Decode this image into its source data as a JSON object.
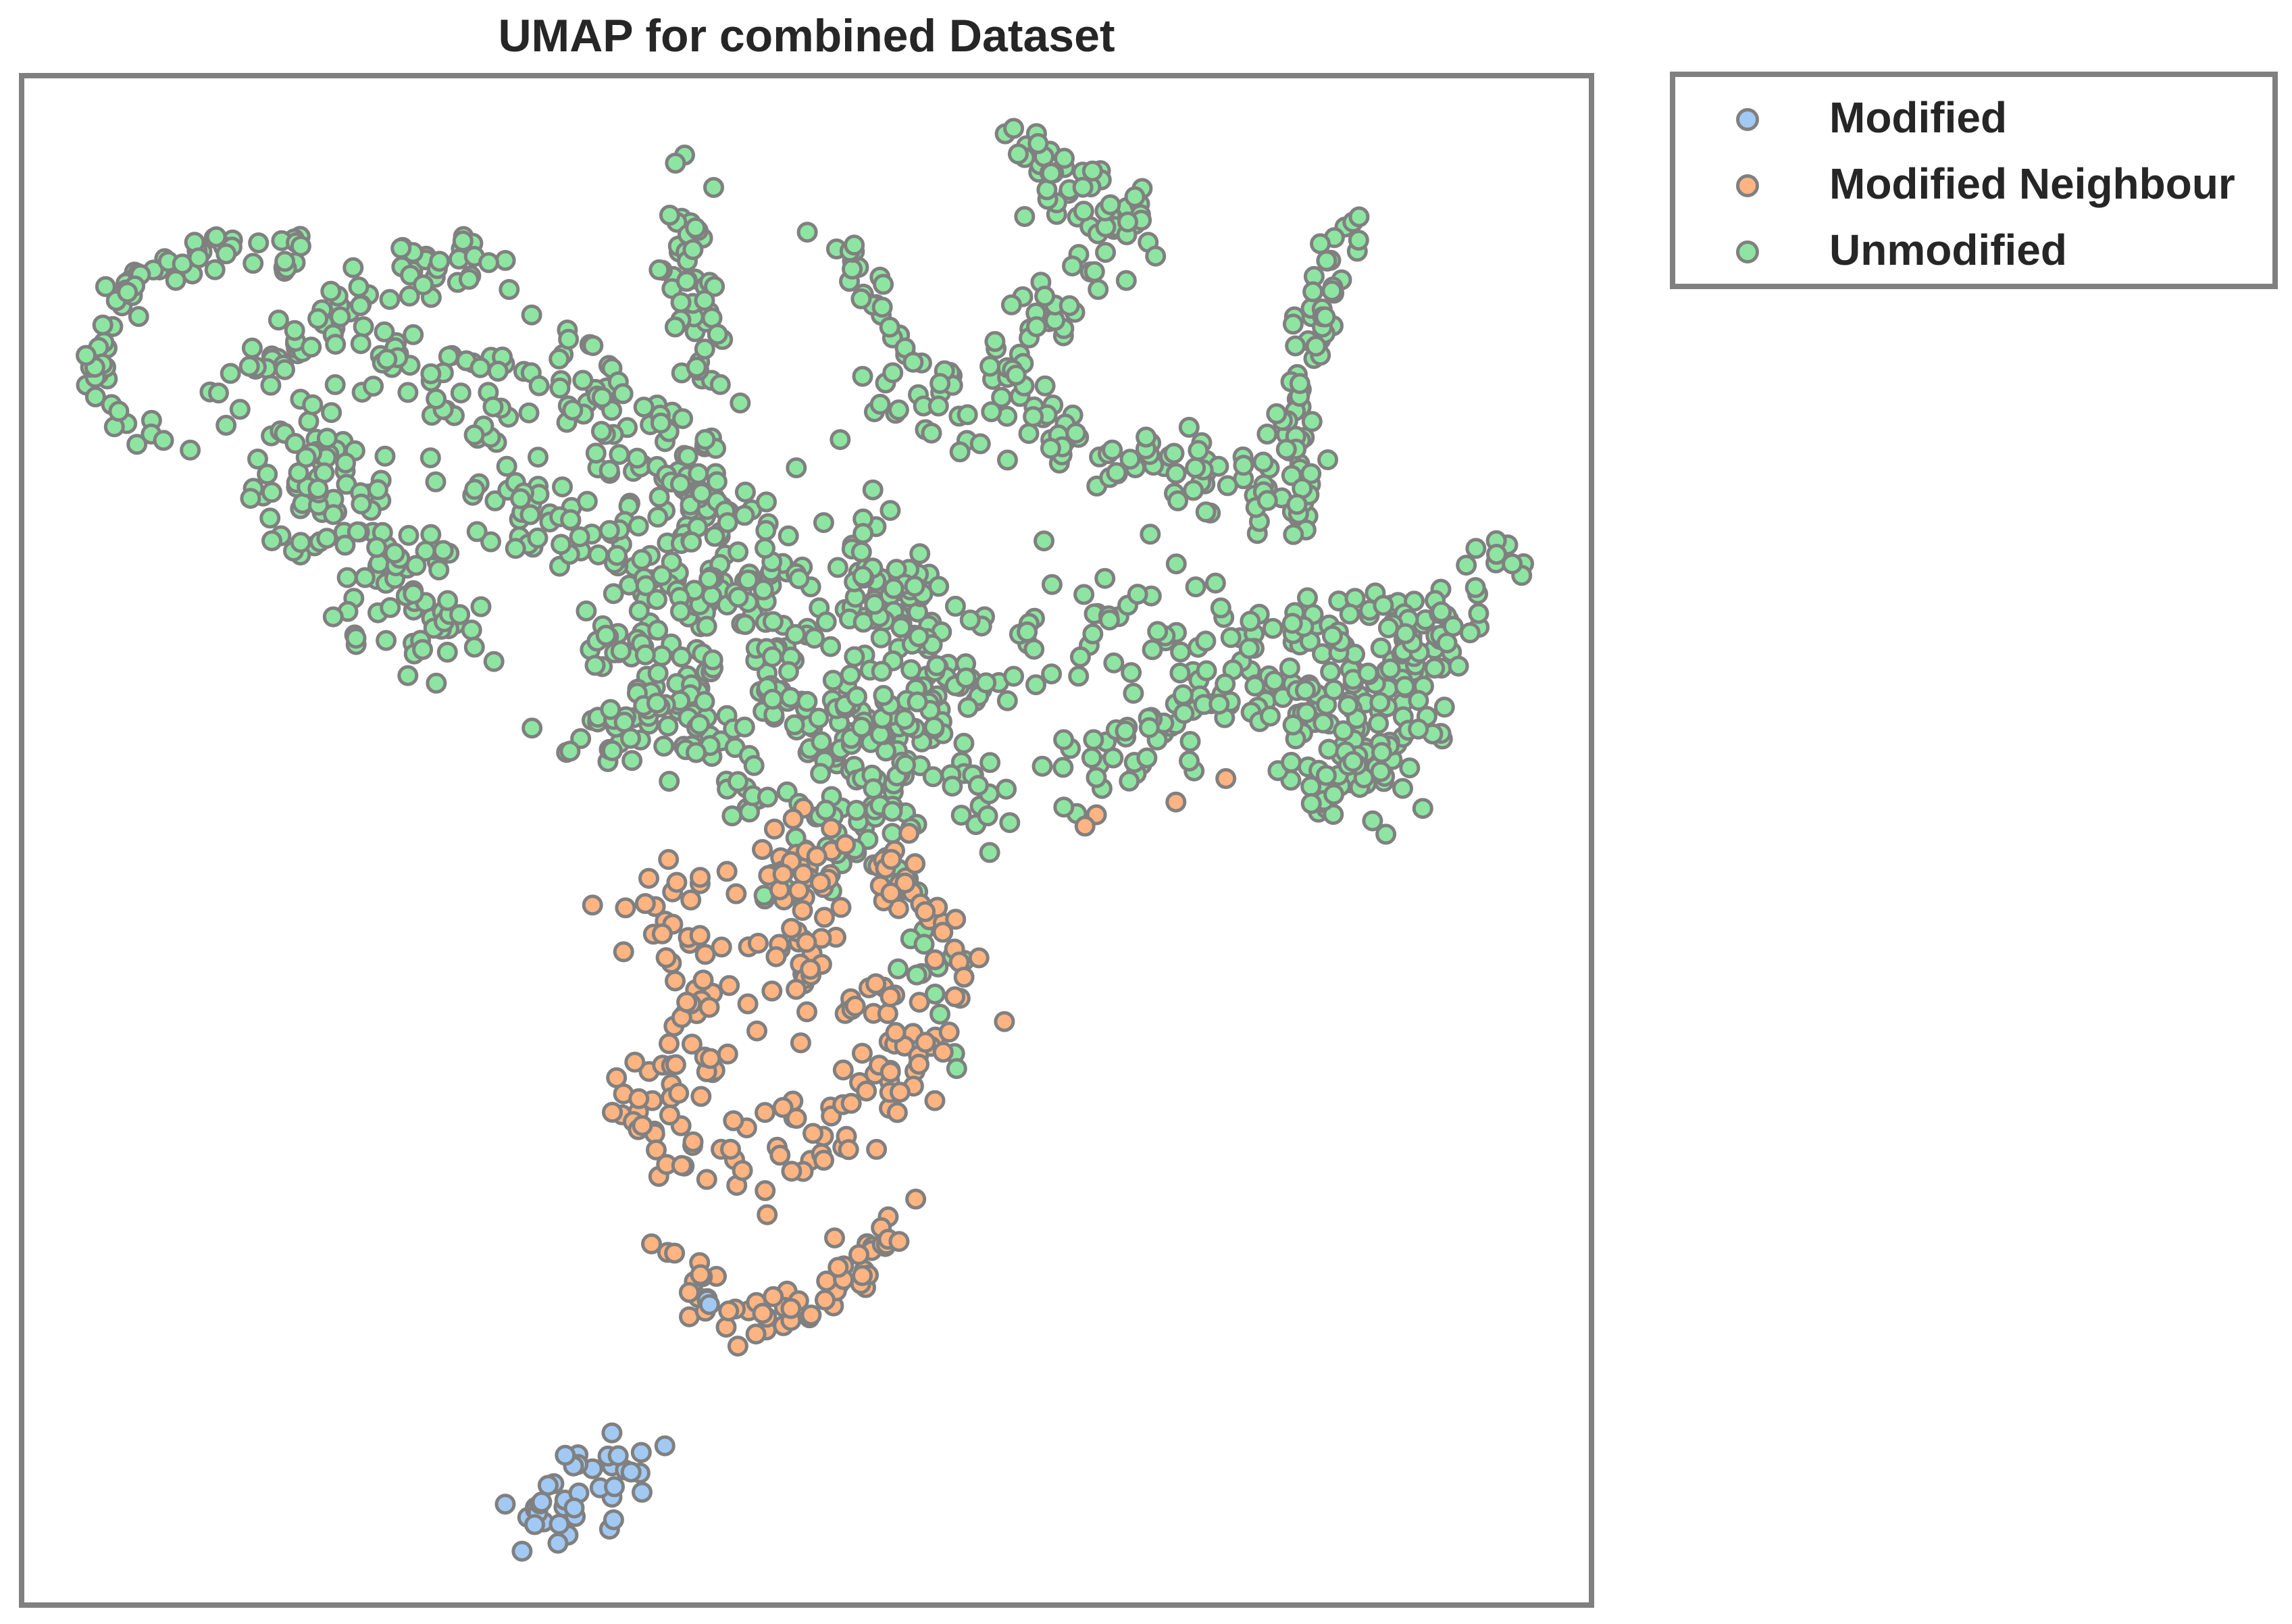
{
  "chart_data": {
    "type": "scatter",
    "title": "UMAP for combined Dataset",
    "xlabel": "",
    "ylabel": "",
    "xlim": [
      0,
      1
    ],
    "ylim": [
      0,
      1
    ],
    "grid": false,
    "axes_ticks": false,
    "legend_placement": "outside-top-right",
    "point_edge_color": "#808080",
    "series": [
      {
        "name": "Modified",
        "color": "#a1c9f4",
        "clusters": [
          {
            "path": [
              [
                0.31,
                0.05
              ],
              [
                0.34,
                0.08
              ],
              [
                0.38,
                0.1
              ],
              [
                0.4,
                0.09
              ],
              [
                0.37,
                0.065
              ],
              [
                0.33,
                0.05
              ]
            ],
            "spread": 0.008,
            "count": 40,
            "closed": true
          },
          {
            "path": [
              [
                0.42,
                0.2
              ],
              [
                0.44,
                0.195
              ]
            ],
            "spread": 0.004,
            "count": 2,
            "closed": false
          }
        ]
      },
      {
        "name": "Modified Neighbour",
        "color": "#ffb482",
        "clusters": [
          {
            "path": [
              [
                0.4,
                0.32
              ],
              [
                0.42,
                0.3
              ],
              [
                0.47,
                0.29
              ],
              [
                0.52,
                0.31
              ],
              [
                0.56,
                0.34
              ],
              [
                0.58,
                0.36
              ],
              [
                0.55,
                0.38
              ],
              [
                0.52,
                0.4
              ],
              [
                0.48,
                0.43
              ],
              [
                0.5,
                0.47
              ],
              [
                0.51,
                0.5
              ],
              [
                0.47,
                0.48
              ],
              [
                0.42,
                0.47
              ],
              [
                0.4,
                0.45
              ],
              [
                0.42,
                0.42
              ],
              [
                0.44,
                0.38
              ],
              [
                0.4,
                0.35
              ]
            ],
            "spread": 0.016,
            "count": 210,
            "closed": true
          },
          {
            "path": [
              [
                0.41,
                0.22
              ],
              [
                0.45,
                0.19
              ],
              [
                0.5,
                0.19
              ],
              [
                0.53,
                0.22
              ],
              [
                0.56,
                0.24
              ],
              [
                0.57,
                0.25
              ]
            ],
            "spread": 0.01,
            "count": 60,
            "closed": false
          },
          {
            "path": [
              [
                0.54,
                0.47
              ],
              [
                0.55,
                0.48
              ],
              [
                0.57,
                0.465
              ],
              [
                0.59,
                0.43
              ],
              [
                0.6,
                0.4
              ],
              [
                0.6,
                0.38
              ]
            ],
            "spread": 0.008,
            "count": 24,
            "closed": false
          },
          {
            "path": [
              [
                0.54,
                0.48
              ],
              [
                0.56,
                0.49
              ]
            ],
            "spread": 0.004,
            "count": 4,
            "closed": false
          },
          {
            "path": [
              [
                0.55,
                0.485
              ],
              [
                0.61,
                0.495
              ],
              [
                0.77,
                0.54
              ]
            ],
            "spread": 0.004,
            "count": 4,
            "closed": false
          }
        ]
      },
      {
        "name": "Unmodified",
        "color": "#8de5a1",
        "clusters": [
          {
            "path": [
              [
                0.09,
                0.76
              ],
              [
                0.06,
                0.78
              ],
              [
                0.045,
                0.81
              ],
              [
                0.055,
                0.85
              ],
              [
                0.09,
                0.88
              ],
              [
                0.13,
                0.89
              ],
              [
                0.16,
                0.88
              ],
              [
                0.18,
                0.89
              ]
            ],
            "spread": 0.008,
            "count": 70,
            "closed": false
          },
          {
            "path": [
              [
                0.12,
                0.79
              ],
              [
                0.16,
                0.82
              ],
              [
                0.19,
                0.84
              ],
              [
                0.22,
                0.86
              ],
              [
                0.25,
                0.87
              ],
              [
                0.28,
                0.88
              ],
              [
                0.31,
                0.87
              ]
            ],
            "spread": 0.01,
            "count": 60,
            "closed": false
          },
          {
            "path": [
              [
                0.18,
                0.81
              ],
              [
                0.17,
                0.77
              ],
              [
                0.19,
                0.73
              ],
              [
                0.22,
                0.7
              ],
              [
                0.26,
                0.68
              ],
              [
                0.28,
                0.64
              ],
              [
                0.26,
                0.62
              ],
              [
                0.23,
                0.67
              ],
              [
                0.2,
                0.7
              ],
              [
                0.19,
                0.75
              ]
            ],
            "spread": 0.018,
            "count": 140,
            "closed": false
          },
          {
            "path": [
              [
                0.22,
                0.82
              ],
              [
                0.26,
                0.8
              ],
              [
                0.3,
                0.79
              ],
              [
                0.34,
                0.81
              ],
              [
                0.37,
                0.78
              ],
              [
                0.4,
                0.74
              ],
              [
                0.43,
                0.71
              ],
              [
                0.46,
                0.69
              ],
              [
                0.49,
                0.67
              ],
              [
                0.52,
                0.66
              ],
              [
                0.55,
                0.65
              ],
              [
                0.58,
                0.64
              ]
            ],
            "spread": 0.02,
            "count": 200,
            "closed": false
          },
          {
            "path": [
              [
                0.29,
                0.71
              ],
              [
                0.33,
                0.72
              ],
              [
                0.37,
                0.7
              ],
              [
                0.4,
                0.67
              ],
              [
                0.43,
                0.65
              ],
              [
                0.46,
                0.64
              ],
              [
                0.49,
                0.62
              ]
            ],
            "spread": 0.018,
            "count": 120,
            "closed": false
          },
          {
            "path": [
              [
                0.42,
                0.94
              ],
              [
                0.43,
                0.91
              ],
              [
                0.42,
                0.88
              ],
              [
                0.43,
                0.84
              ],
              [
                0.44,
                0.8
              ],
              [
                0.43,
                0.77
              ],
              [
                0.42,
                0.74
              ],
              [
                0.44,
                0.7
              ]
            ],
            "spread": 0.01,
            "count": 80,
            "closed": false
          },
          {
            "path": [
              [
                0.51,
                0.9
              ],
              [
                0.53,
                0.88
              ],
              [
                0.54,
                0.86
              ],
              [
                0.56,
                0.83
              ],
              [
                0.57,
                0.81
              ]
            ],
            "spread": 0.006,
            "count": 24,
            "closed": false
          },
          {
            "path": [
              [
                0.63,
                0.96
              ],
              [
                0.65,
                0.95
              ],
              [
                0.66,
                0.93
              ],
              [
                0.68,
                0.91
              ],
              [
                0.71,
                0.92
              ],
              [
                0.7,
                0.89
              ],
              [
                0.67,
                0.86
              ],
              [
                0.64,
                0.83
              ]
            ],
            "spread": 0.012,
            "count": 80,
            "closed": false
          },
          {
            "path": [
              [
                0.85,
                0.91
              ],
              [
                0.84,
                0.89
              ],
              [
                0.83,
                0.86
              ],
              [
                0.82,
                0.83
              ],
              [
                0.815,
                0.8
              ],
              [
                0.81,
                0.77
              ],
              [
                0.815,
                0.74
              ],
              [
                0.82,
                0.71
              ]
            ],
            "spread": 0.007,
            "count": 60,
            "closed": false
          },
          {
            "path": [
              [
                0.55,
                0.78
              ],
              [
                0.58,
                0.8
              ],
              [
                0.6,
                0.78
              ],
              [
                0.62,
                0.79
              ],
              [
                0.65,
                0.77
              ],
              [
                0.68,
                0.76
              ],
              [
                0.71,
                0.75
              ],
              [
                0.74,
                0.74
              ],
              [
                0.77,
                0.73
              ],
              [
                0.8,
                0.74
              ],
              [
                0.83,
                0.73
              ]
            ],
            "spread": 0.014,
            "count": 120,
            "closed": false
          },
          {
            "path": [
              [
                0.53,
                0.7
              ],
              [
                0.55,
                0.67
              ],
              [
                0.56,
                0.64
              ],
              [
                0.55,
                0.61
              ],
              [
                0.57,
                0.58
              ],
              [
                0.6,
                0.6
              ],
              [
                0.63,
                0.62
              ],
              [
                0.66,
                0.64
              ],
              [
                0.7,
                0.65
              ],
              [
                0.73,
                0.64
              ],
              [
                0.77,
                0.63
              ],
              [
                0.81,
                0.62
              ],
              [
                0.85,
                0.6
              ],
              [
                0.88,
                0.6
              ],
              [
                0.9,
                0.62
              ]
            ],
            "spread": 0.016,
            "count": 170,
            "closed": false
          },
          {
            "path": [
              [
                0.37,
                0.63
              ],
              [
                0.4,
                0.61
              ],
              [
                0.42,
                0.58
              ],
              [
                0.44,
                0.55
              ],
              [
                0.46,
                0.53
              ],
              [
                0.49,
                0.52
              ],
              [
                0.51,
                0.51
              ],
              [
                0.54,
                0.53
              ],
              [
                0.55,
                0.5
              ]
            ],
            "spread": 0.014,
            "count": 110,
            "closed": false
          },
          {
            "path": [
              [
                0.47,
                0.6
              ],
              [
                0.5,
                0.58
              ],
              [
                0.53,
                0.56
              ],
              [
                0.56,
                0.55
              ],
              [
                0.59,
                0.56
              ],
              [
                0.61,
                0.53
              ],
              [
                0.62,
                0.52
              ]
            ],
            "spread": 0.012,
            "count": 80,
            "closed": false
          },
          {
            "path": [
              [
                0.66,
                0.55
              ],
              [
                0.7,
                0.56
              ],
              [
                0.74,
                0.58
              ],
              [
                0.77,
                0.61
              ],
              [
                0.8,
                0.59
              ],
              [
                0.83,
                0.57
              ],
              [
                0.86,
                0.54
              ],
              [
                0.88,
                0.52
              ]
            ],
            "spread": 0.014,
            "count": 100,
            "closed": false
          },
          {
            "path": [
              [
                0.86,
                0.66
              ],
              [
                0.88,
                0.64
              ],
              [
                0.9,
                0.63
              ],
              [
                0.92,
                0.65
              ],
              [
                0.94,
                0.68
              ],
              [
                0.955,
                0.7
              ]
            ],
            "spread": 0.01,
            "count": 50,
            "closed": false
          },
          {
            "path": [
              [
                0.81,
                0.65
              ],
              [
                0.84,
                0.63
              ],
              [
                0.87,
                0.61
              ],
              [
                0.89,
                0.58
              ],
              [
                0.87,
                0.55
              ],
              [
                0.84,
                0.54
              ],
              [
                0.81,
                0.54
              ]
            ],
            "spread": 0.012,
            "count": 70,
            "closed": false
          },
          {
            "path": [
              [
                0.53,
                0.58
              ],
              [
                0.55,
                0.585
              ],
              [
                0.58,
                0.575
              ]
            ],
            "spread": 0.008,
            "count": 14,
            "closed": false
          },
          {
            "path": [
              [
                0.54,
                0.49
              ],
              [
                0.56,
                0.47
              ],
              [
                0.58,
                0.445
              ],
              [
                0.6,
                0.425
              ]
            ],
            "spread": 0.005,
            "count": 10,
            "closed": false
          },
          {
            "path": [
              [
                0.47,
                0.465
              ],
              [
                0.5,
                0.47
              ],
              [
                0.53,
                0.475
              ],
              [
                0.56,
                0.47
              ]
            ],
            "spread": 0.004,
            "count": 10,
            "closed": false
          },
          {
            "path": [
              [
                0.57,
                0.435
              ],
              [
                0.58,
                0.38
              ],
              [
                0.59,
                0.36
              ],
              [
                0.6,
                0.355
              ]
            ],
            "spread": 0.006,
            "count": 10,
            "closed": false
          },
          {
            "path": [
              [
                0.34,
                0.56
              ],
              [
                0.37,
                0.57
              ],
              [
                0.39,
                0.58
              ],
              [
                0.4,
                0.6
              ]
            ],
            "spread": 0.008,
            "count": 24,
            "closed": false
          }
        ]
      }
    ]
  },
  "legend": {
    "items": [
      {
        "label": "Modified",
        "color": "#a1c9f4"
      },
      {
        "label": "Modified Neighbour",
        "color": "#ffb482"
      },
      {
        "label": "Unmodified",
        "color": "#8de5a1"
      }
    ]
  }
}
